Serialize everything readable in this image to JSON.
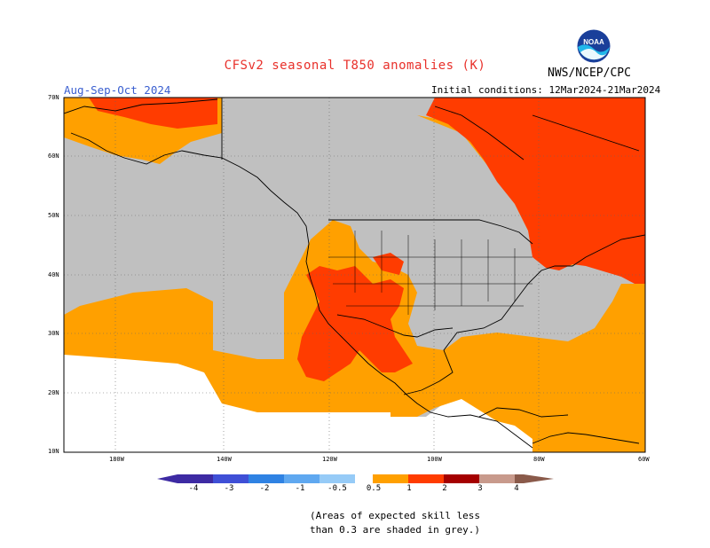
{
  "header": {
    "title": "CFSv2 seasonal T850 anomalies (K)",
    "season": "Aug-Sep-Oct 2024",
    "initial_conditions": "Initial conditions: 12Mar2024-21Mar2024",
    "agency": "NWS/NCEP/CPC",
    "logo_text": "NOAA"
  },
  "map": {
    "lat_labels": [
      "70N",
      "60N",
      "50N",
      "40N",
      "30N",
      "20N",
      "10N"
    ],
    "lon_labels": [
      "180W",
      "140W",
      "120W",
      "100W",
      "80W",
      "60W"
    ],
    "colors": {
      "grey": "#c0c0c0",
      "orange": "#ffa000",
      "red_orange": "#ff3c00",
      "white": "#ffffff"
    }
  },
  "colorbar": {
    "labels": [
      "-4",
      "-3",
      "-2",
      "-1",
      "-0.5",
      "0.5",
      "1",
      "2",
      "3",
      "4"
    ],
    "colors": [
      "#3d2aa3",
      "#3f4fd6",
      "#2f82e3",
      "#5fa8f0",
      "#96cbf7",
      "#ffffff",
      "#ffa000",
      "#ff3c00",
      "#a50000",
      "#c89a8c",
      "#8a5a4a"
    ]
  },
  "note": {
    "line1": "(Areas of expected skill less",
    "line2": "than 0.3 are shaded in grey.)"
  }
}
